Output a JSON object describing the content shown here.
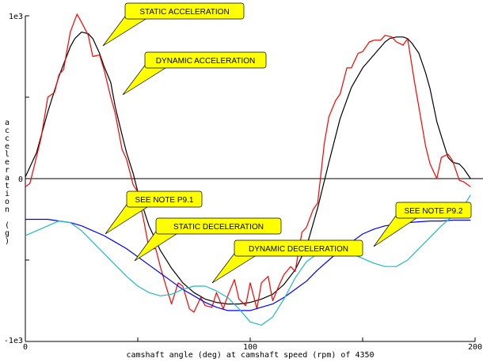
{
  "chart_data": {
    "type": "line",
    "xlabel": "camshaft angle (deg) at camshaft speed (rpm) of 4350",
    "ylabel": "acceleration (g)",
    "xlim": [
      0,
      200
    ],
    "ylim": [
      -1000,
      1000
    ],
    "x_ticks": [
      {
        "value": 0,
        "label": "0"
      },
      {
        "value": 100,
        "label": "100"
      },
      {
        "value": 200,
        "label": "200"
      }
    ],
    "y_ticks": [
      {
        "value": 1000,
        "label": "1e3"
      },
      {
        "value": 0,
        "label": "0"
      },
      {
        "value": -1000,
        "label": "-1e3"
      }
    ],
    "grid": false,
    "series": [
      {
        "color": "#000000",
        "x": [
          0,
          5,
          10,
          15,
          20,
          22,
          25,
          28,
          30,
          33,
          35,
          38,
          40,
          43,
          45,
          48,
          50,
          55,
          60,
          65,
          70,
          75,
          80,
          85,
          90,
          95,
          100,
          105,
          110,
          115,
          120,
          125,
          130,
          135,
          140,
          145,
          150,
          155,
          160,
          162,
          165,
          168,
          170,
          172,
          175,
          178,
          180,
          183,
          185,
          188,
          190,
          193,
          195,
          198
        ],
        "y": [
          10,
          160,
          410,
          630,
          810,
          860,
          900,
          890,
          860,
          770,
          690,
          590,
          440,
          270,
          160,
          30,
          -80,
          -290,
          -440,
          -550,
          -640,
          -700,
          -740,
          -760,
          -770,
          -770,
          -760,
          -740,
          -710,
          -650,
          -560,
          -420,
          -180,
          100,
          370,
          560,
          680,
          760,
          840,
          860,
          870,
          870,
          860,
          830,
          770,
          650,
          550,
          350,
          260,
          130,
          100,
          90,
          60,
          0
        ]
      },
      {
        "color": "#ff0000",
        "x": [
          0,
          2,
          4,
          7,
          10,
          13,
          15,
          17,
          20,
          23,
          25,
          28,
          30,
          33,
          35,
          38,
          40,
          43,
          45,
          48,
          50,
          53,
          55,
          58,
          60,
          63,
          65,
          68,
          70,
          73,
          75,
          78,
          80,
          83,
          85,
          88,
          90,
          93,
          95,
          98,
          100,
          103,
          105,
          108,
          110,
          113,
          115,
          118,
          120,
          123,
          125,
          128,
          130,
          133,
          135,
          138,
          140,
          143,
          145,
          148,
          150,
          153,
          155,
          158,
          160,
          163,
          165,
          168,
          170,
          173,
          175,
          178,
          180,
          183,
          185,
          188,
          190,
          193,
          195,
          198
        ],
        "y": [
          -50,
          -30,
          80,
          250,
          500,
          530,
          640,
          670,
          900,
          1010,
          960,
          880,
          750,
          760,
          670,
          500,
          400,
          180,
          120,
          -40,
          -80,
          -280,
          -430,
          -430,
          -540,
          -680,
          -770,
          -640,
          -660,
          -800,
          -820,
          -730,
          -780,
          -790,
          -700,
          -800,
          -720,
          -620,
          -740,
          -780,
          -640,
          -800,
          -640,
          -600,
          -750,
          -650,
          -590,
          -540,
          -570,
          -330,
          -300,
          -190,
          -150,
          220,
          380,
          480,
          520,
          680,
          680,
          770,
          780,
          840,
          850,
          850,
          880,
          870,
          840,
          820,
          860,
          600,
          440,
          200,
          90,
          0,
          130,
          150,
          110,
          -10,
          -20,
          -50
        ]
      },
      {
        "color": "#0000ff",
        "x": [
          0,
          5,
          10,
          15,
          20,
          25,
          30,
          35,
          40,
          45,
          50,
          55,
          60,
          65,
          70,
          75,
          80,
          85,
          90,
          95,
          100,
          105,
          110,
          115,
          120,
          125,
          130,
          135,
          140,
          145,
          150,
          155,
          160,
          165,
          170,
          175,
          180,
          185,
          190,
          195,
          198
        ],
        "y": [
          -250,
          -250,
          -250,
          -260,
          -270,
          -290,
          -320,
          -350,
          -390,
          -430,
          -480,
          -530,
          -580,
          -630,
          -680,
          -720,
          -760,
          -790,
          -810,
          -810,
          -810,
          -790,
          -770,
          -730,
          -680,
          -630,
          -560,
          -500,
          -440,
          -390,
          -340,
          -310,
          -290,
          -280,
          -270,
          -265,
          -260,
          -260,
          -255,
          -255,
          -255
        ]
      },
      {
        "color": "#22b8c0",
        "x": [
          0,
          5,
          10,
          15,
          20,
          25,
          30,
          35,
          40,
          45,
          50,
          55,
          60,
          65,
          70,
          75,
          80,
          85,
          90,
          95,
          100,
          105,
          110,
          115,
          120,
          125,
          130,
          135,
          140,
          145,
          150,
          155,
          160,
          165,
          170,
          175,
          180,
          185,
          190,
          195,
          198
        ],
        "y": [
          -350,
          -320,
          -290,
          -260,
          -270,
          -320,
          -390,
          -460,
          -530,
          -600,
          -660,
          -700,
          -720,
          -710,
          -680,
          -660,
          -660,
          -690,
          -730,
          -800,
          -880,
          -900,
          -850,
          -740,
          -610,
          -510,
          -460,
          -440,
          -440,
          -460,
          -490,
          -520,
          -540,
          -540,
          -500,
          -430,
          -360,
          -290,
          -230,
          -170,
          -100
        ]
      }
    ],
    "annotations": [
      {
        "text": "STATIC ACCELERATION"
      },
      {
        "text": "DYNAMIC ACCELERATION"
      },
      {
        "text": "SEE NOTE P9.1"
      },
      {
        "text": "STATIC DECELERATION"
      },
      {
        "text": "DYNAMIC DECELERATION"
      },
      {
        "text": "SEE NOTE P9.2"
      }
    ],
    "callout_color": "#ffff00"
  }
}
